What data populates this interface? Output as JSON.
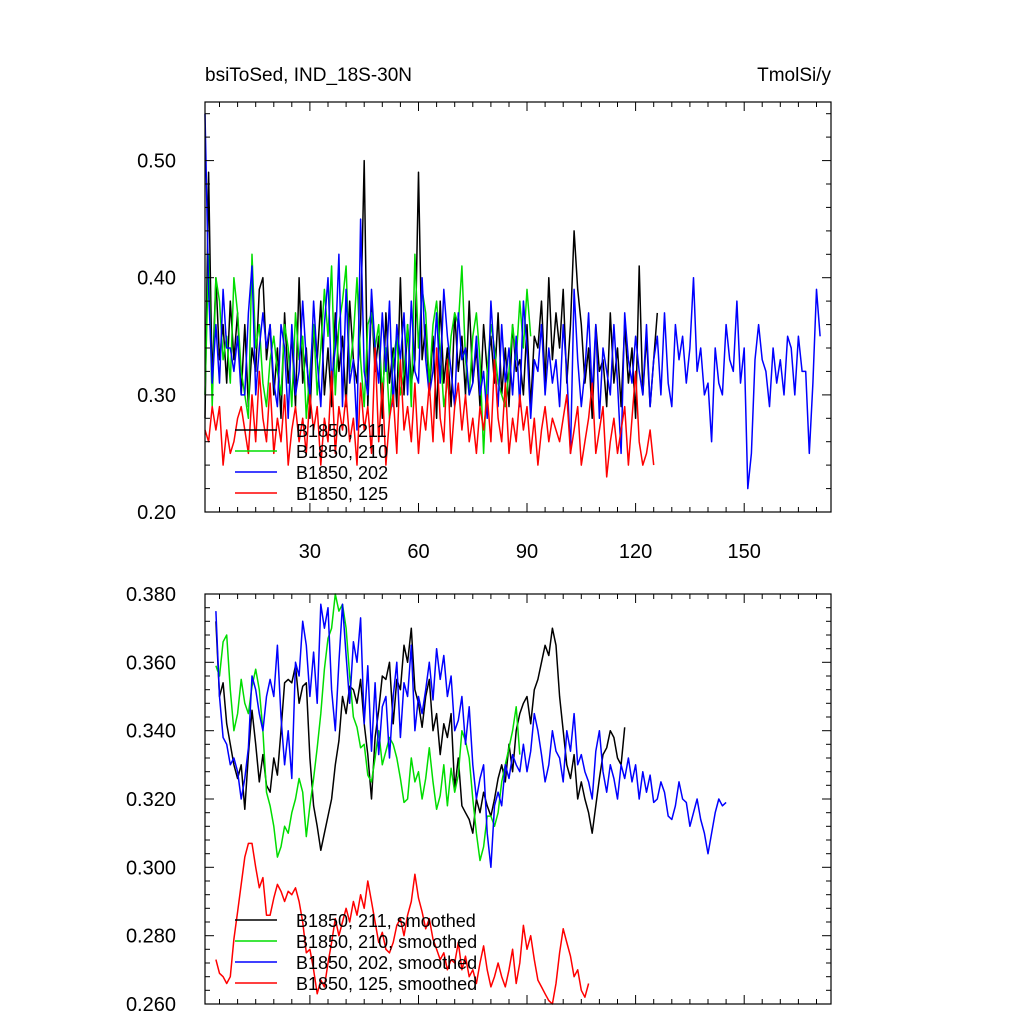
{
  "chart_data": [
    {
      "type": "line",
      "title_left": "bsiToSed, IND_18S-30N",
      "title_right": "TmolSi/y",
      "xlabel": "",
      "ylabel": "",
      "xlim": [
        1,
        174
      ],
      "ylim": [
        0.2,
        0.55
      ],
      "xticks": [
        30,
        60,
        90,
        120,
        150
      ],
      "yticks": [
        0.2,
        0.3,
        0.4,
        0.5
      ],
      "ytick_labels": [
        "0.20",
        "0.30",
        "0.40",
        "0.50"
      ],
      "grid": false,
      "legend_position": "bottom-left",
      "series": [
        {
          "name": "B1850, 211",
          "color": "#000000",
          "x_start": 1,
          "values": [
            0.28,
            0.49,
            0.31,
            0.4,
            0.33,
            0.36,
            0.31,
            0.38,
            0.33,
            0.37,
            0.3,
            0.36,
            0.29,
            0.34,
            0.32,
            0.39,
            0.4,
            0.33,
            0.36,
            0.3,
            0.34,
            0.28,
            0.37,
            0.31,
            0.35,
            0.29,
            0.4,
            0.31,
            0.34,
            0.28,
            0.36,
            0.33,
            0.38,
            0.3,
            0.34,
            0.29,
            0.37,
            0.32,
            0.35,
            0.29,
            0.38,
            0.33,
            0.31,
            0.36,
            0.5,
            0.29,
            0.38,
            0.32,
            0.35,
            0.28,
            0.37,
            0.31,
            0.34,
            0.29,
            0.4,
            0.3,
            0.36,
            0.31,
            0.33,
            0.49,
            0.33,
            0.36,
            0.3,
            0.35,
            0.28,
            0.38,
            0.31,
            0.34,
            0.29,
            0.37,
            0.32,
            0.35,
            0.3,
            0.38,
            0.31,
            0.34,
            0.29,
            0.36,
            0.32,
            0.35,
            0.31,
            0.37,
            0.3,
            0.34,
            0.29,
            0.36,
            0.32,
            0.33,
            0.3,
            0.36,
            0.29,
            0.35,
            0.34,
            0.38,
            0.31,
            0.4,
            0.33,
            0.37,
            0.34,
            0.39,
            0.31,
            0.36,
            0.44,
            0.39,
            0.36,
            0.31,
            0.34,
            0.28,
            0.36,
            0.32,
            0.33,
            0.29,
            0.37,
            0.31,
            0.34,
            0.29,
            0.36,
            0.31,
            0.34,
            0.28,
            0.41,
            0.3,
            0.35,
            0.29,
            0.33,
            0.37
          ]
        },
        {
          "name": "B1850, 210",
          "color": "#00dd00",
          "x_start": 1,
          "values": [
            0.3,
            0.42,
            0.29,
            0.4,
            0.38,
            0.33,
            0.35,
            0.31,
            0.4,
            0.37,
            0.32,
            0.3,
            0.28,
            0.42,
            0.34,
            0.36,
            0.31,
            0.29,
            0.33,
            0.35,
            0.32,
            0.3,
            0.36,
            0.34,
            0.29,
            0.37,
            0.33,
            0.35,
            0.28,
            0.32,
            0.36,
            0.3,
            0.34,
            0.39,
            0.35,
            0.41,
            0.3,
            0.36,
            0.38,
            0.41,
            0.32,
            0.35,
            0.4,
            0.33,
            0.29,
            0.36,
            0.37,
            0.34,
            0.36,
            0.3,
            0.34,
            0.28,
            0.33,
            0.35,
            0.3,
            0.32,
            0.36,
            0.29,
            0.42,
            0.34,
            0.39,
            0.37,
            0.31,
            0.36,
            0.38,
            0.34,
            0.29,
            0.31,
            0.35,
            0.37,
            0.36,
            0.41,
            0.33,
            0.3,
            0.35,
            0.37,
            0.33,
            0.25,
            0.32,
            0.36,
            0.34,
            0.31,
            0.3,
            0.29,
            0.32,
            0.36,
            0.33,
            0.38,
            0.34,
            0.39,
            0.35
          ]
        },
        {
          "name": "B1850, 202",
          "color": "#0000ff",
          "x_start": 1,
          "values": [
            0.54,
            0.39,
            0.31,
            0.36,
            0.31,
            0.39,
            0.34,
            0.34,
            0.32,
            0.35,
            0.3,
            0.3,
            0.37,
            0.41,
            0.3,
            0.34,
            0.37,
            0.34,
            0.36,
            0.31,
            0.29,
            0.36,
            0.34,
            0.28,
            0.36,
            0.3,
            0.32,
            0.38,
            0.33,
            0.3,
            0.38,
            0.33,
            0.29,
            0.36,
            0.4,
            0.31,
            0.34,
            0.42,
            0.29,
            0.39,
            0.31,
            0.33,
            0.27,
            0.45,
            0.32,
            0.3,
            0.39,
            0.34,
            0.31,
            0.37,
            0.32,
            0.38,
            0.29,
            0.36,
            0.33,
            0.37,
            0.3,
            0.38,
            0.32,
            0.31,
            0.4,
            0.33,
            0.3,
            0.32,
            0.37,
            0.31,
            0.39,
            0.35,
            0.32,
            0.29,
            0.37,
            0.33,
            0.34,
            0.3,
            0.31,
            0.35,
            0.3,
            0.32,
            0.28,
            0.38,
            0.33,
            0.29,
            0.36,
            0.31,
            0.34,
            0.3,
            0.35,
            0.29,
            0.38,
            0.34,
            0.28,
            0.33,
            0.32,
            0.36,
            0.3,
            0.34,
            0.31,
            0.33,
            0.29,
            0.36,
            0.32,
            0.25,
            0.39,
            0.33,
            0.29,
            0.32,
            0.37,
            0.3,
            0.36,
            0.28,
            0.34,
            0.32,
            0.3,
            0.36,
            0.31,
            0.25,
            0.37,
            0.33,
            0.31,
            0.35,
            0.32,
            0.3,
            0.36,
            0.29,
            0.33,
            0.35,
            0.3,
            0.37,
            0.31,
            0.29,
            0.36,
            0.33,
            0.35,
            0.31,
            0.34,
            0.4,
            0.32,
            0.34,
            0.3,
            0.31,
            0.26,
            0.34,
            0.31,
            0.3,
            0.36,
            0.33,
            0.32,
            0.38,
            0.31,
            0.34,
            0.22,
            0.25,
            0.33,
            0.36,
            0.33,
            0.32,
            0.29,
            0.34,
            0.31,
            0.33,
            0.3,
            0.35,
            0.34,
            0.3,
            0.35,
            0.32,
            0.32,
            0.25,
            0.31,
            0.39,
            0.35
          ]
        },
        {
          "name": "B1850, 125",
          "color": "#ff0000",
          "x_start": 1,
          "values": [
            0.27,
            0.26,
            0.29,
            0.27,
            0.29,
            0.24,
            0.27,
            0.25,
            0.26,
            0.28,
            0.29,
            0.27,
            0.25,
            0.3,
            0.26,
            0.32,
            0.28,
            0.26,
            0.31,
            0.25,
            0.28,
            0.26,
            0.3,
            0.24,
            0.27,
            0.29,
            0.26,
            0.28,
            0.25,
            0.3,
            0.27,
            0.29,
            0.24,
            0.28,
            0.26,
            0.32,
            0.25,
            0.29,
            0.27,
            0.3,
            0.26,
            0.28,
            0.24,
            0.31,
            0.27,
            0.29,
            0.25,
            0.34,
            0.26,
            0.31,
            0.24,
            0.28,
            0.3,
            0.25,
            0.33,
            0.27,
            0.29,
            0.26,
            0.31,
            0.25,
            0.29,
            0.27,
            0.31,
            0.26,
            0.34,
            0.28,
            0.26,
            0.33,
            0.25,
            0.29,
            0.31,
            0.27,
            0.3,
            0.26,
            0.28,
            0.25,
            0.29,
            0.27,
            0.3,
            0.26,
            0.33,
            0.28,
            0.26,
            0.31,
            0.25,
            0.28,
            0.26,
            0.3,
            0.27,
            0.29,
            0.25,
            0.28,
            0.24,
            0.27,
            0.29,
            0.26,
            0.28,
            0.27,
            0.26,
            0.28,
            0.3,
            0.25,
            0.27,
            0.29,
            0.24,
            0.26,
            0.28,
            0.31,
            0.25,
            0.27,
            0.29,
            0.23,
            0.26,
            0.28,
            0.25,
            0.27,
            0.29,
            0.24,
            0.28,
            0.32,
            0.26,
            0.24,
            0.25,
            0.27,
            0.24
          ]
        }
      ]
    },
    {
      "type": "line",
      "xlabel": "",
      "ylabel": "",
      "xlim": [
        1,
        174
      ],
      "ylim": [
        0.26,
        0.38
      ],
      "xticks": [
        30,
        60,
        90,
        120,
        150
      ],
      "yticks": [
        0.26,
        0.28,
        0.3,
        0.32,
        0.34,
        0.36,
        0.38
      ],
      "ytick_labels": [
        "0.260",
        "0.280",
        "0.300",
        "0.320",
        "0.340",
        "0.360",
        "0.380"
      ],
      "grid": false,
      "legend_position": "bottom-left",
      "series": [
        {
          "name": "B1850, 211, smoothed",
          "color": "#000000",
          "x_start": 4,
          "values": [
            0.372,
            0.35,
            0.354,
            0.342,
            0.336,
            0.33,
            0.326,
            0.33,
            0.317,
            0.333,
            0.346,
            0.336,
            0.325,
            0.333,
            0.324,
            0.322,
            0.332,
            0.327,
            0.34,
            0.354,
            0.355,
            0.354,
            0.359,
            0.348,
            0.353,
            0.354,
            0.332,
            0.318,
            0.312,
            0.305,
            0.31,
            0.315,
            0.32,
            0.33,
            0.337,
            0.35,
            0.345,
            0.353,
            0.352,
            0.348,
            0.355,
            0.342,
            0.333,
            0.32,
            0.338,
            0.346,
            0.356,
            0.355,
            0.36,
            0.342,
            0.355,
            0.352,
            0.365,
            0.36,
            0.37,
            0.352,
            0.348,
            0.341,
            0.35,
            0.355,
            0.34,
            0.345,
            0.333,
            0.342,
            0.338,
            0.345,
            0.323,
            0.332,
            0.318,
            0.316,
            0.314,
            0.31,
            0.32,
            0.316,
            0.322,
            0.318,
            0.315,
            0.32,
            0.326,
            0.33,
            0.325,
            0.336,
            0.328,
            0.34,
            0.345,
            0.348,
            0.35,
            0.342,
            0.352,
            0.355,
            0.36,
            0.365,
            0.362,
            0.37,
            0.365,
            0.35,
            0.34,
            0.33,
            0.326,
            0.333,
            0.32,
            0.325,
            0.32,
            0.316,
            0.31,
            0.318,
            0.326,
            0.333,
            0.335,
            0.34,
            0.338,
            0.332,
            0.33,
            0.341
          ]
        },
        {
          "name": "B1850, 210, smoothed",
          "color": "#00dd00",
          "x_start": 4,
          "values": [
            0.359,
            0.356,
            0.366,
            0.368,
            0.352,
            0.34,
            0.345,
            0.355,
            0.348,
            0.345,
            0.353,
            0.358,
            0.352,
            0.34,
            0.322,
            0.318,
            0.312,
            0.303,
            0.306,
            0.312,
            0.31,
            0.316,
            0.32,
            0.326,
            0.322,
            0.309,
            0.318,
            0.326,
            0.335,
            0.345,
            0.358,
            0.367,
            0.37,
            0.38,
            0.375,
            0.377,
            0.37,
            0.356,
            0.344,
            0.341,
            0.335,
            0.336,
            0.327,
            0.325,
            0.332,
            0.34,
            0.33,
            0.334,
            0.338,
            0.336,
            0.332,
            0.326,
            0.319,
            0.32,
            0.332,
            0.325,
            0.328,
            0.32,
            0.326,
            0.335,
            0.325,
            0.317,
            0.321,
            0.33,
            0.318,
            0.329,
            0.322,
            0.327,
            0.34,
            0.337,
            0.332,
            0.32,
            0.31,
            0.302,
            0.306,
            0.315,
            0.315,
            0.312,
            0.316,
            0.325,
            0.33,
            0.335,
            0.34,
            0.347,
            0.333
          ]
        },
        {
          "name": "B1850, 202, smoothed",
          "color": "#0000ff",
          "x_start": 4,
          "values": [
            0.375,
            0.35,
            0.338,
            0.336,
            0.33,
            0.332,
            0.328,
            0.32,
            0.326,
            0.335,
            0.356,
            0.352,
            0.345,
            0.34,
            0.35,
            0.355,
            0.35,
            0.365,
            0.344,
            0.33,
            0.34,
            0.326,
            0.36,
            0.356,
            0.372,
            0.365,
            0.35,
            0.363,
            0.348,
            0.377,
            0.37,
            0.376,
            0.352,
            0.34,
            0.36,
            0.377,
            0.362,
            0.348,
            0.366,
            0.36,
            0.373,
            0.342,
            0.359,
            0.334,
            0.354,
            0.333,
            0.347,
            0.35,
            0.332,
            0.35,
            0.36,
            0.338,
            0.354,
            0.35,
            0.365,
            0.34,
            0.35,
            0.345,
            0.352,
            0.36,
            0.349,
            0.364,
            0.355,
            0.362,
            0.35,
            0.356,
            0.34,
            0.343,
            0.35,
            0.336,
            0.347,
            0.33,
            0.32,
            0.326,
            0.33,
            0.31,
            0.3,
            0.318,
            0.322,
            0.318,
            0.33,
            0.326,
            0.333,
            0.33,
            0.328,
            0.336,
            0.328,
            0.334,
            0.345,
            0.34,
            0.333,
            0.325,
            0.33,
            0.34,
            0.334,
            0.332,
            0.325,
            0.34,
            0.334,
            0.345,
            0.33,
            0.333,
            0.328,
            0.325,
            0.32,
            0.334,
            0.34,
            0.328,
            0.322,
            0.33,
            0.326,
            0.32,
            0.33,
            0.326,
            0.332,
            0.325,
            0.33,
            0.32,
            0.328,
            0.322,
            0.327,
            0.319,
            0.32,
            0.325,
            0.322,
            0.315,
            0.314,
            0.318,
            0.325,
            0.32,
            0.319,
            0.312,
            0.316,
            0.32,
            0.314,
            0.31,
            0.304,
            0.31,
            0.316,
            0.32,
            0.318,
            0.319
          ]
        },
        {
          "name": "B1850, 125, smoothed",
          "color": "#ff0000",
          "x_start": 4,
          "values": [
            0.273,
            0.269,
            0.268,
            0.266,
            0.268,
            0.279,
            0.287,
            0.295,
            0.303,
            0.307,
            0.307,
            0.3,
            0.294,
            0.297,
            0.286,
            0.286,
            0.291,
            0.295,
            0.293,
            0.29,
            0.293,
            0.292,
            0.294,
            0.29,
            0.284,
            0.275,
            0.276,
            0.27,
            0.263,
            0.267,
            0.265,
            0.272,
            0.278,
            0.285,
            0.28,
            0.284,
            0.288,
            0.284,
            0.29,
            0.286,
            0.292,
            0.288,
            0.296,
            0.29,
            0.284,
            0.278,
            0.281,
            0.276,
            0.275,
            0.278,
            0.283,
            0.285,
            0.28,
            0.286,
            0.29,
            0.298,
            0.291,
            0.287,
            0.282,
            0.285,
            0.279,
            0.276,
            0.273,
            0.275,
            0.27,
            0.273,
            0.272,
            0.278,
            0.27,
            0.274,
            0.268,
            0.27,
            0.266,
            0.272,
            0.277,
            0.27,
            0.265,
            0.268,
            0.272,
            0.268,
            0.265,
            0.27,
            0.276,
            0.266,
            0.272,
            0.283,
            0.276,
            0.28,
            0.273,
            0.267,
            0.265,
            0.263,
            0.261,
            0.26,
            0.266,
            0.275,
            0.282,
            0.278,
            0.274,
            0.268,
            0.27,
            0.264,
            0.262,
            0.266
          ]
        }
      ]
    }
  ]
}
